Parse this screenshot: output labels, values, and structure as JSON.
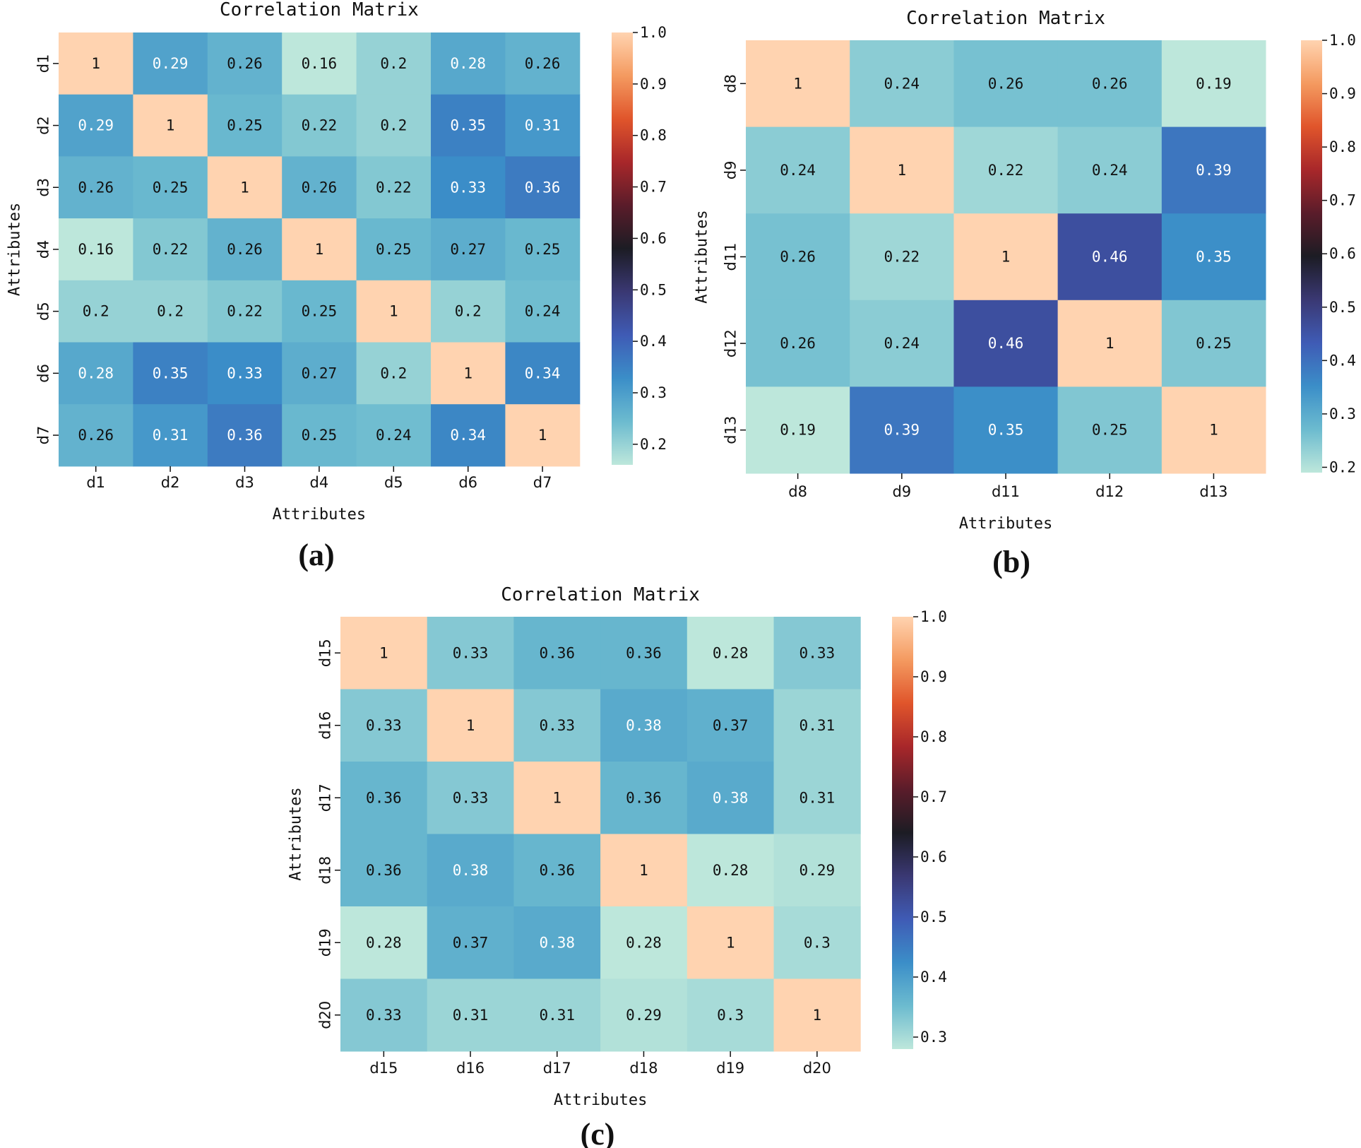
{
  "chart_data": [
    {
      "type": "heatmap",
      "panel": "(a)",
      "title": "Correlation Matrix",
      "xlabel": "Attributes",
      "ylabel": "Attributes",
      "row_labels": [
        "d1",
        "d2",
        "d3",
        "d4",
        "d5",
        "d6",
        "d7"
      ],
      "col_labels": [
        "d1",
        "d2",
        "d3",
        "d4",
        "d5",
        "d6",
        "d7"
      ],
      "values": [
        [
          1,
          0.29,
          0.26,
          0.16,
          0.2,
          0.28,
          0.26
        ],
        [
          0.29,
          1,
          0.25,
          0.22,
          0.2,
          0.35,
          0.31
        ],
        [
          0.26,
          0.25,
          1,
          0.26,
          0.22,
          0.33,
          0.36
        ],
        [
          0.16,
          0.22,
          0.26,
          1,
          0.25,
          0.27,
          0.25
        ],
        [
          0.2,
          0.2,
          0.22,
          0.25,
          1,
          0.2,
          0.24
        ],
        [
          0.28,
          0.35,
          0.33,
          0.27,
          0.2,
          1,
          0.34
        ],
        [
          0.26,
          0.31,
          0.36,
          0.25,
          0.24,
          0.34,
          1
        ]
      ],
      "colorbar_range": [
        0.16,
        1.0
      ],
      "colorbar_ticks": [
        "1.0",
        "0.9",
        "0.8",
        "0.7",
        "0.6",
        "0.5",
        "0.4",
        "0.3",
        "0.2"
      ]
    },
    {
      "type": "heatmap",
      "panel": "(b)",
      "title": "Correlation Matrix",
      "xlabel": "Attributes",
      "ylabel": "Attributes",
      "row_labels": [
        "d8",
        "d9",
        "d11",
        "d12",
        "d13"
      ],
      "col_labels": [
        "d8",
        "d9",
        "d11",
        "d12",
        "d13"
      ],
      "values": [
        [
          1,
          0.24,
          0.26,
          0.26,
          0.19
        ],
        [
          0.24,
          1,
          0.22,
          0.24,
          0.39
        ],
        [
          0.26,
          0.22,
          1,
          0.46,
          0.35
        ],
        [
          0.26,
          0.24,
          0.46,
          1,
          0.25
        ],
        [
          0.19,
          0.39,
          0.35,
          0.25,
          1
        ]
      ],
      "colorbar_range": [
        0.19,
        1.0
      ],
      "colorbar_ticks": [
        "1.0",
        "0.9",
        "0.8",
        "0.7",
        "0.6",
        "0.5",
        "0.4",
        "0.3",
        "0.2"
      ]
    },
    {
      "type": "heatmap",
      "panel": "(c)",
      "title": "Correlation Matrix",
      "xlabel": "Attributes",
      "ylabel": "Attributes",
      "row_labels": [
        "d15",
        "d16",
        "d17",
        "d18",
        "d19",
        "d20"
      ],
      "col_labels": [
        "d15",
        "d16",
        "d17",
        "d18",
        "d19",
        "d20"
      ],
      "values": [
        [
          1,
          0.33,
          0.36,
          0.36,
          0.28,
          0.33
        ],
        [
          0.33,
          1,
          0.33,
          0.38,
          0.37,
          0.31
        ],
        [
          0.36,
          0.33,
          1,
          0.36,
          0.38,
          0.31
        ],
        [
          0.36,
          0.38,
          0.36,
          1,
          0.28,
          0.29
        ],
        [
          0.28,
          0.37,
          0.38,
          0.28,
          1,
          0.3
        ],
        [
          0.33,
          0.31,
          0.31,
          0.29,
          0.3,
          1
        ]
      ],
      "colorbar_range": [
        0.28,
        1.0
      ],
      "colorbar_ticks": [
        "1.0",
        "0.9",
        "0.8",
        "0.7",
        "0.6",
        "0.5",
        "0.4",
        "0.3"
      ]
    }
  ],
  "colormap": {
    "name": "icefire",
    "stops": [
      "#bde7db",
      "#6cbbcf",
      "#3b8ec8",
      "#3f5bb5",
      "#3a3873",
      "#1c1c24",
      "#5a1c2a",
      "#a8272a",
      "#e0552b",
      "#f49a60",
      "#ffd3b0"
    ]
  }
}
